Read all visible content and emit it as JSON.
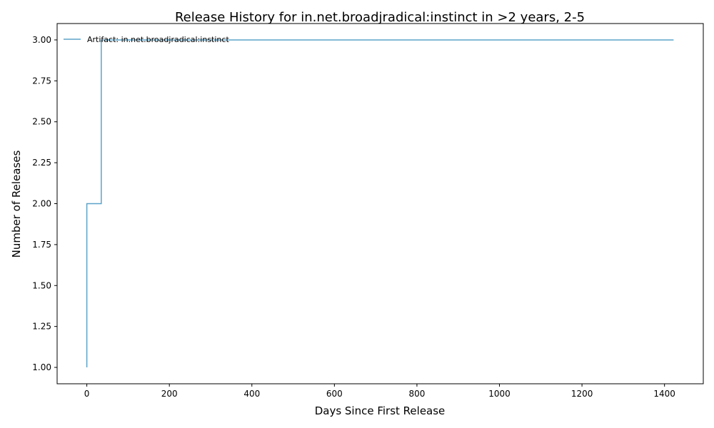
{
  "chart_data": {
    "type": "line",
    "drawstyle": "steps-post",
    "title": "Release History for in.net.broadjradical:instinct in >2 years, 2-5",
    "xlabel": "Days Since First Release",
    "ylabel": "Number of Releases",
    "xlim": [
      -72,
      1494
    ],
    "ylim": [
      0.9,
      3.1
    ],
    "xticks": [
      0,
      200,
      400,
      600,
      800,
      1000,
      1200,
      1400
    ],
    "xtick_labels": [
      "0",
      "200",
      "400",
      "600",
      "800",
      "1000",
      "1200",
      "1400"
    ],
    "yticks": [
      1.0,
      1.25,
      1.5,
      1.75,
      2.0,
      2.25,
      2.5,
      2.75,
      3.0
    ],
    "ytick_labels": [
      "1.00",
      "1.25",
      "1.50",
      "1.75",
      "2.00",
      "2.25",
      "2.50",
      "2.75",
      "3.00"
    ],
    "grid": false,
    "legend_position": "top-left",
    "series": [
      {
        "name": "Artifact: in.net.broadjradical:instinct",
        "color": "#5ba3c9",
        "x": [
          0,
          0,
          35,
          1422
        ],
        "y": [
          1,
          2,
          3,
          3
        ]
      }
    ]
  }
}
